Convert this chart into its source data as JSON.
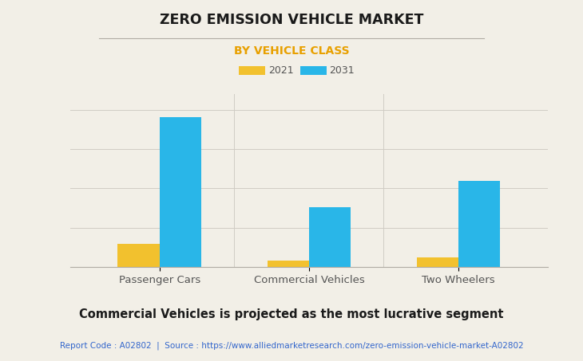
{
  "title": "ZERO EMISSION VEHICLE MARKET",
  "subtitle": "BY VEHICLE CLASS",
  "categories": [
    "Passenger Cars",
    "Commercial Vehicles",
    "Two Wheelers"
  ],
  "years": [
    "2021",
    "2031"
  ],
  "values_2021": [
    15,
    4,
    6
  ],
  "values_2031": [
    95,
    38,
    55
  ],
  "color_2021": "#F2C12E",
  "color_2031": "#29B6E8",
  "title_color": "#1a1a1a",
  "subtitle_color": "#E8A000",
  "background_color": "#F2EFE7",
  "plot_bg_color": "#F2EFE7",
  "grid_color": "#d0ccc4",
  "footer_text": "Commercial Vehicles is projected as the most lucrative segment",
  "source_text": "Report Code : A02802  |  Source : https://www.alliedmarketresearch.com/zero-emission-vehicle-market-A02802",
  "source_color": "#3366CC",
  "ylim": [
    0,
    110
  ],
  "bar_width": 0.28
}
